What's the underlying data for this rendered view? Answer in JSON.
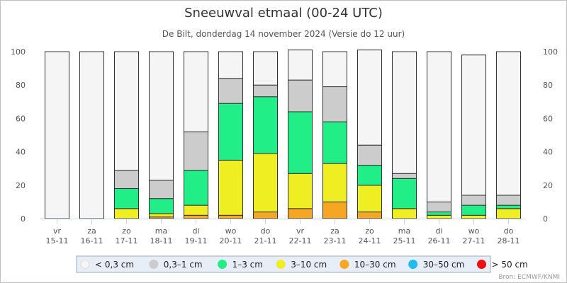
{
  "chart_data": {
    "type": "bar",
    "stacked": true,
    "title": "Sneeuwval etmaal (00-24 UTC)",
    "subtitle": "De Bilt, donderdag 14 november 2024 (Versie do 12 uur)",
    "categories": [
      [
        "vr",
        "15-11"
      ],
      [
        "za",
        "16-11"
      ],
      [
        "zo",
        "17-11"
      ],
      [
        "ma",
        "18-11"
      ],
      [
        "di",
        "19-11"
      ],
      [
        "wo",
        "20-11"
      ],
      [
        "do",
        "21-11"
      ],
      [
        "vr",
        "22-11"
      ],
      [
        "za",
        "23-11"
      ],
      [
        "zo",
        "24-11"
      ],
      [
        "ma",
        "25-11"
      ],
      [
        "di",
        "26-11"
      ],
      [
        "wo",
        "27-11"
      ],
      [
        "do",
        "28-11"
      ]
    ],
    "ylim": [
      0,
      100
    ],
    "yticks": [
      0,
      20,
      40,
      60,
      80,
      100
    ],
    "series": [
      {
        "name": "< 0,3 cm",
        "color": "#f5f5f5",
        "values": [
          100,
          100,
          71,
          77,
          48,
          16,
          20,
          18,
          21,
          57,
          73,
          90,
          84,
          86
        ]
      },
      {
        "name": "0,3–1 cm",
        "color": "#cccccc",
        "values": [
          0,
          0,
          11,
          11,
          23,
          15,
          7,
          19,
          21,
          12,
          3,
          6,
          6,
          6
        ]
      },
      {
        "name": "1–3 cm",
        "color": "#22ee88",
        "values": [
          0,
          0,
          12,
          9,
          21,
          34,
          34,
          37,
          25,
          12,
          18,
          2,
          6,
          2
        ]
      },
      {
        "name": "3–10 cm",
        "color": "#eeee22",
        "values": [
          0,
          0,
          6,
          2,
          6,
          33,
          35,
          21,
          23,
          16,
          6,
          2,
          2,
          6
        ]
      },
      {
        "name": "10–30 cm",
        "color": "#f5a623",
        "values": [
          0,
          0,
          0,
          1,
          2,
          2,
          4,
          6,
          10,
          4,
          0,
          0,
          0,
          0
        ]
      },
      {
        "name": "30–50 cm",
        "color": "#22bbee",
        "values": [
          0,
          0,
          0,
          0,
          0,
          0,
          0,
          0,
          0,
          0,
          0,
          0,
          0,
          0
        ]
      },
      {
        "name": "> 50 cm",
        "color": "#ee1111",
        "values": [
          0,
          0,
          0,
          0,
          0,
          0,
          0,
          0,
          0,
          0,
          0,
          0,
          0,
          0
        ]
      }
    ],
    "legend_position": "bottom-center",
    "grid": false,
    "credit": "Bron: ECMWF/KNMI"
  }
}
